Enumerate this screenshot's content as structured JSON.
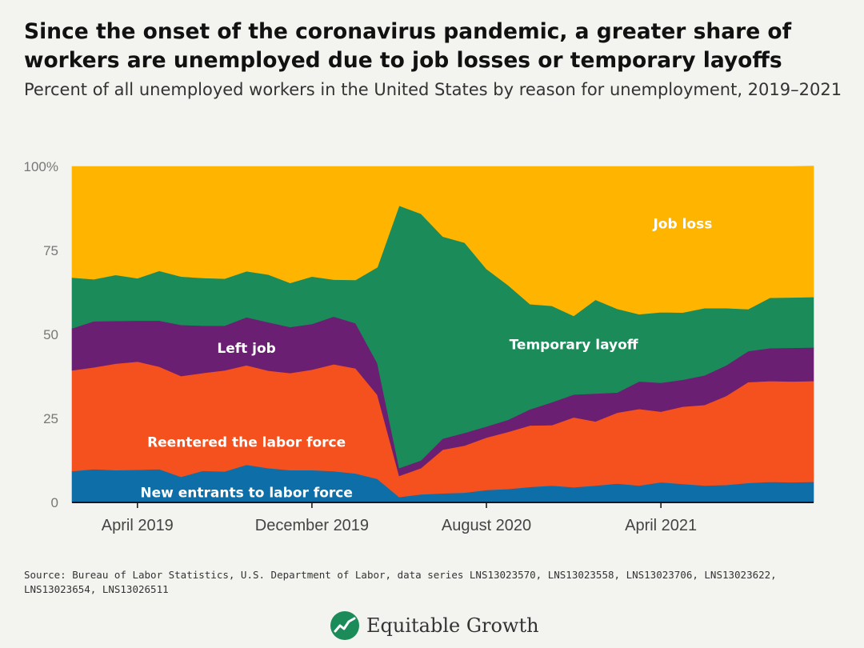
{
  "title": "Since the onset of the coronavirus pandemic, a greater share of workers are unemployed due to job losses or temporary layoffs",
  "subtitle": "Percent of all unemployed workers in the United States by reason for unemployment, 2019–2021",
  "source": "Source: Bureau of Labor Statistics, U.S. Department of Labor, data series LNS13023570, LNS13023558, LNS13023706, LNS13023622, LNS13023654, LNS13026511",
  "logo": {
    "text": "Equitable Growth",
    "icon": "trend-chart-icon"
  },
  "chart_data": {
    "type": "area",
    "stacked": true,
    "title": "Since the onset of the coronavirus pandemic, a greater share of workers are unemployed due to job losses or temporary layoffs",
    "subtitle": "Percent of all unemployed workers in the United States by reason for unemployment, 2019–2021",
    "xlabel": "",
    "ylabel": "",
    "ylim": [
      0,
      100
    ],
    "y_ticks": [
      0,
      25,
      50,
      75,
      100
    ],
    "y_tick_labels": [
      "0",
      "25",
      "50",
      "75",
      "100%"
    ],
    "x": [
      "2019-01",
      "2019-02",
      "2019-03",
      "2019-04",
      "2019-05",
      "2019-06",
      "2019-07",
      "2019-08",
      "2019-09",
      "2019-10",
      "2019-11",
      "2019-12",
      "2020-01",
      "2020-02",
      "2020-03",
      "2020-04",
      "2020-05",
      "2020-06",
      "2020-07",
      "2020-08",
      "2020-09",
      "2020-10",
      "2020-11",
      "2020-12",
      "2021-01",
      "2021-02",
      "2021-03",
      "2021-04",
      "2021-05",
      "2021-06",
      "2021-07",
      "2021-08",
      "2021-09",
      "2021-10",
      "2021-11"
    ],
    "x_ticks": [
      "2019-04",
      "2019-12",
      "2020-08",
      "2021-04"
    ],
    "x_tick_labels": [
      "April 2019",
      "December 2019",
      "August 2020",
      "April 2021"
    ],
    "series": [
      {
        "name": "New entrants to labor force",
        "color": "#0e6fa8",
        "values": [
          9.3,
          9.9,
          9.6,
          9.7,
          9.9,
          7.6,
          9.4,
          9.2,
          11.2,
          10.2,
          9.6,
          9.6,
          9.3,
          8.6,
          7.0,
          1.6,
          2.4,
          2.7,
          2.9,
          3.7,
          4.0,
          4.6,
          5.0,
          4.5,
          5.0,
          5.6,
          5.0,
          6.0,
          5.5,
          5.0,
          5.2,
          5.8,
          6.1,
          6.0,
          6.1
        ]
      },
      {
        "name": "Reentered the labor force",
        "color": "#f4511e",
        "values": [
          30.0,
          30.3,
          31.7,
          32.2,
          30.5,
          30.0,
          29.1,
          30.1,
          29.6,
          29.0,
          28.9,
          29.9,
          31.8,
          31.3,
          25.0,
          6.3,
          7.8,
          13.0,
          14.0,
          15.6,
          17.0,
          18.3,
          18.0,
          20.8,
          19.1,
          21.1,
          22.8,
          21.0,
          23.0,
          24.0,
          26.5,
          30.0,
          30.0,
          30.0,
          30.0
        ]
      },
      {
        "name": "Left job",
        "color": "#6b1f72",
        "values": [
          12.5,
          13.7,
          12.7,
          12.2,
          13.7,
          15.2,
          14.1,
          13.3,
          14.3,
          14.4,
          13.7,
          13.6,
          14.2,
          13.4,
          9.4,
          2.3,
          2.3,
          3.3,
          3.8,
          3.3,
          3.6,
          4.8,
          6.8,
          6.8,
          8.3,
          6.0,
          8.2,
          8.6,
          8.0,
          8.8,
          9.1,
          9.2,
          9.8,
          10.0,
          10.0
        ]
      },
      {
        "name": "Temporary layoff",
        "color": "#1a8b59",
        "values": [
          15.1,
          12.5,
          13.7,
          12.6,
          14.8,
          14.4,
          14.2,
          14.0,
          13.7,
          14.2,
          13.1,
          14.1,
          11.0,
          12.9,
          28.6,
          78.1,
          73.4,
          60.1,
          56.6,
          46.9,
          40.0,
          31.3,
          28.7,
          23.4,
          27.9,
          24.9,
          20.0,
          21.0,
          20.0,
          20.0,
          17.0,
          12.5,
          15.0,
          15.0,
          15.0
        ]
      },
      {
        "name": "Job loss",
        "color": "#ffb400",
        "values": [
          33.1,
          33.6,
          32.3,
          33.3,
          31.1,
          32.8,
          33.2,
          33.4,
          31.2,
          32.2,
          34.7,
          32.8,
          33.7,
          33.8,
          30.0,
          11.7,
          14.1,
          20.9,
          22.7,
          30.5,
          35.4,
          41.0,
          41.5,
          44.5,
          39.7,
          42.4,
          44.0,
          43.4,
          43.5,
          42.2,
          42.2,
          42.5,
          39.1,
          39.0,
          39.0
        ]
      }
    ],
    "annotations": [
      {
        "series": "Job loss",
        "text": "Job loss",
        "x": "2021-05",
        "y": 83,
        "color": "#ffffff"
      },
      {
        "series": "Temporary layoff",
        "text": "Temporary layoff",
        "x": "2020-12",
        "y": 47,
        "color": "#ffffff"
      },
      {
        "series": "Left job",
        "text": "Left job",
        "x": "2019-09",
        "y": 46,
        "color": "#ffffff"
      },
      {
        "series": "Reentered the labor force",
        "text": "Reentered the labor force",
        "x": "2019-09",
        "y": 18,
        "color": "#ffffff"
      },
      {
        "series": "New entrants to labor force",
        "text": "New entrants to labor force",
        "x": "2019-09",
        "y": 3,
        "color": "#ffffff"
      }
    ],
    "grid": false,
    "legend": "none"
  }
}
